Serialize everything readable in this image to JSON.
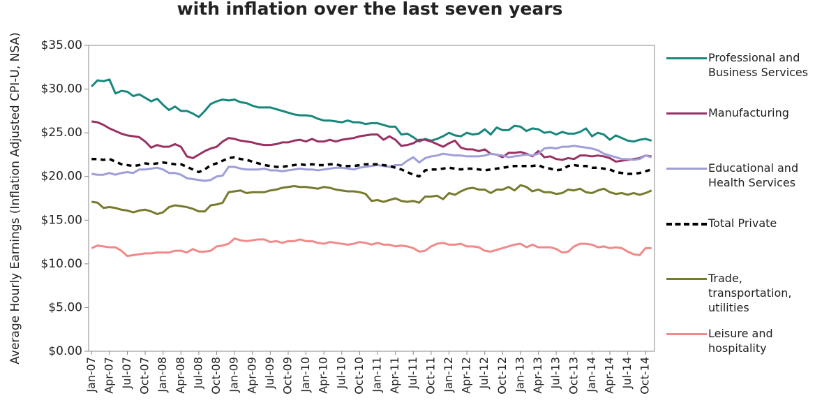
{
  "chart_data": {
    "type": "line",
    "title": "with inflation over the last seven years",
    "y_label": "Average Hourly Earnings (Inflation Adjusted CPI-U, NSA)",
    "categories": [
      "Jan-07",
      null,
      null,
      "Apr-07",
      null,
      null,
      "Jul-07",
      null,
      null,
      "Oct-07",
      null,
      null,
      "Jan-08",
      null,
      null,
      "Apr-08",
      null,
      null,
      "Jul-08",
      null,
      null,
      "Oct-08",
      null,
      null,
      "Jan-09",
      null,
      null,
      "Apr-09",
      null,
      null,
      "Jul-09",
      null,
      null,
      "Oct-09",
      null,
      null,
      "Jan-10",
      null,
      null,
      "Apr-10",
      null,
      null,
      "Jul-10",
      null,
      null,
      "Oct-10",
      null,
      null,
      "Jan-11",
      null,
      null,
      "Apr-11",
      null,
      null,
      "Jul-11",
      null,
      null,
      "Oct-11",
      null,
      null,
      "Jan-12",
      null,
      null,
      "Apr-12",
      null,
      null,
      "Jul-12",
      null,
      null,
      "Oct-12",
      null,
      null,
      "Jan-13",
      null,
      null,
      "Apr-13",
      null,
      null,
      "Jul-13",
      null,
      null,
      "Oct-13",
      null,
      null,
      "Jan-14",
      null,
      null,
      "Apr-14",
      null,
      null,
      "Jul-14",
      null,
      null,
      "Oct-14",
      null
    ],
    "ylim": [
      0,
      35
    ],
    "yticks": [
      {
        "value": 0,
        "label": "$0.00"
      },
      {
        "value": 5,
        "label": "$5.00"
      },
      {
        "value": 10,
        "label": "$10.00"
      },
      {
        "value": 15,
        "label": "$15.00"
      },
      {
        "value": 20,
        "label": "$20.00"
      },
      {
        "value": 25,
        "label": "$25.00"
      },
      {
        "value": 30,
        "label": "$30.00"
      },
      {
        "value": 35,
        "label": "$35.00"
      }
    ],
    "series": [
      {
        "name": "Professional and Business Services",
        "color": "#17877c",
        "dashed": false,
        "values": [
          30.3,
          31.0,
          30.9,
          31.1,
          29.5,
          29.8,
          29.7,
          29.2,
          29.4,
          29.0,
          28.6,
          28.9,
          28.2,
          27.6,
          28.0,
          27.5,
          27.5,
          27.2,
          26.8,
          27.5,
          28.3,
          28.6,
          28.8,
          28.7,
          28.8,
          28.5,
          28.4,
          28.1,
          27.9,
          27.9,
          27.9,
          27.7,
          27.5,
          27.3,
          27.1,
          27.0,
          27.0,
          26.9,
          26.6,
          26.4,
          26.4,
          26.3,
          26.2,
          26.4,
          26.2,
          26.2,
          26.0,
          26.1,
          26.1,
          25.9,
          25.7,
          25.7,
          24.8,
          24.9,
          24.5,
          24.0,
          24.3,
          24.1,
          24.3,
          24.6,
          25.0,
          24.7,
          24.6,
          25.0,
          24.8,
          24.9,
          25.4,
          24.8,
          25.6,
          25.3,
          25.3,
          25.8,
          25.7,
          25.2,
          25.5,
          25.4,
          25.0,
          25.1,
          24.8,
          25.1,
          24.9,
          24.9,
          25.1,
          25.5,
          24.6,
          25.0,
          24.8,
          24.2,
          24.7,
          24.4,
          24.1,
          24.0,
          24.2,
          24.3,
          24.1
        ]
      },
      {
        "name": "Manufacturing",
        "color": "#993163",
        "dashed": false,
        "values": [
          26.3,
          26.2,
          25.9,
          25.5,
          25.2,
          24.9,
          24.7,
          24.6,
          24.5,
          24.0,
          23.3,
          23.6,
          23.4,
          23.4,
          23.7,
          23.4,
          22.3,
          22.1,
          22.5,
          22.9,
          23.2,
          23.4,
          24.0,
          24.4,
          24.3,
          24.1,
          24.0,
          23.9,
          23.7,
          23.6,
          23.6,
          23.7,
          23.9,
          23.9,
          24.1,
          24.2,
          24.0,
          24.3,
          24.0,
          24.0,
          24.2,
          24.0,
          24.2,
          24.3,
          24.4,
          24.6,
          24.7,
          24.8,
          24.8,
          24.2,
          24.6,
          24.2,
          23.5,
          23.6,
          23.8,
          24.2,
          24.2,
          24.0,
          23.7,
          23.4,
          23.8,
          24.1,
          23.3,
          23.1,
          23.1,
          22.9,
          23.1,
          22.6,
          22.5,
          22.2,
          22.7,
          22.7,
          22.8,
          22.6,
          22.3,
          22.9,
          22.2,
          22.3,
          22.0,
          21.9,
          22.1,
          22.0,
          22.4,
          22.4,
          22.3,
          22.4,
          22.3,
          22.1,
          21.7,
          21.8,
          21.9,
          22.0,
          22.1,
          22.4,
          22.3
        ]
      },
      {
        "name": "Educational and Health Services",
        "color": "#9e9ed8",
        "dashed": false,
        "values": [
          20.3,
          20.2,
          20.2,
          20.4,
          20.2,
          20.4,
          20.5,
          20.4,
          20.8,
          20.8,
          20.9,
          21.0,
          20.8,
          20.4,
          20.4,
          20.2,
          19.8,
          19.7,
          19.6,
          19.5,
          19.6,
          20.0,
          20.1,
          21.1,
          21.1,
          20.9,
          20.8,
          20.8,
          20.8,
          20.9,
          20.7,
          20.7,
          20.6,
          20.7,
          20.8,
          20.9,
          20.8,
          20.8,
          20.7,
          20.8,
          20.9,
          21.0,
          21.0,
          20.9,
          20.8,
          21.0,
          21.1,
          21.2,
          21.3,
          21.2,
          21.1,
          21.3,
          21.3,
          21.8,
          22.2,
          21.6,
          22.1,
          22.3,
          22.4,
          22.6,
          22.5,
          22.4,
          22.4,
          22.3,
          22.3,
          22.3,
          22.4,
          22.6,
          22.5,
          22.4,
          22.2,
          22.3,
          22.4,
          22.5,
          22.4,
          22.6,
          23.2,
          23.3,
          23.2,
          23.4,
          23.4,
          23.5,
          23.4,
          23.3,
          23.2,
          23.0,
          22.6,
          22.4,
          22.2,
          22.0,
          22.0,
          21.9,
          22.0,
          22.4,
          22.2
        ]
      },
      {
        "name": "Total Private",
        "color": "#000000",
        "dashed": true,
        "values": [
          22.0,
          22.0,
          21.9,
          22.0,
          21.7,
          21.4,
          21.3,
          21.2,
          21.3,
          21.5,
          21.4,
          21.5,
          21.6,
          21.5,
          21.4,
          21.4,
          21.1,
          20.8,
          20.5,
          20.8,
          21.3,
          21.5,
          21.8,
          22.1,
          22.2,
          22.0,
          21.9,
          21.7,
          21.5,
          21.3,
          21.2,
          21.1,
          21.1,
          21.2,
          21.3,
          21.4,
          21.3,
          21.4,
          21.3,
          21.3,
          21.4,
          21.4,
          21.2,
          21.2,
          21.2,
          21.3,
          21.4,
          21.4,
          21.4,
          21.3,
          21.2,
          21.0,
          20.8,
          20.5,
          20.2,
          20.0,
          20.7,
          20.8,
          20.8,
          20.9,
          21.0,
          20.9,
          20.8,
          20.9,
          20.9,
          20.8,
          20.7,
          20.8,
          20.9,
          21.0,
          21.1,
          21.2,
          21.2,
          21.2,
          21.2,
          21.3,
          21.0,
          20.9,
          20.7,
          20.8,
          21.2,
          21.3,
          21.2,
          21.2,
          21.0,
          21.0,
          20.9,
          20.8,
          20.5,
          20.4,
          20.3,
          20.3,
          20.4,
          20.6,
          20.8
        ]
      },
      {
        "name": "Trade, transportation, utilities",
        "color": "#777a2c",
        "dashed": false,
        "values": [
          17.1,
          17.0,
          16.4,
          16.5,
          16.4,
          16.2,
          16.1,
          15.9,
          16.1,
          16.2,
          16.0,
          15.7,
          15.9,
          16.5,
          16.7,
          16.6,
          16.5,
          16.3,
          16.0,
          16.0,
          16.7,
          16.8,
          17.0,
          18.2,
          18.3,
          18.4,
          18.1,
          18.2,
          18.2,
          18.2,
          18.4,
          18.5,
          18.7,
          18.8,
          18.9,
          18.8,
          18.8,
          18.7,
          18.6,
          18.8,
          18.7,
          18.5,
          18.4,
          18.3,
          18.3,
          18.2,
          18.0,
          17.2,
          17.3,
          17.1,
          17.3,
          17.5,
          17.2,
          17.1,
          17.2,
          17.0,
          17.7,
          17.7,
          17.8,
          17.4,
          18.1,
          17.9,
          18.3,
          18.6,
          18.7,
          18.5,
          18.5,
          18.1,
          18.5,
          18.5,
          18.8,
          18.4,
          19.0,
          18.8,
          18.3,
          18.5,
          18.2,
          18.2,
          18.0,
          18.1,
          18.5,
          18.4,
          18.6,
          18.2,
          18.1,
          18.4,
          18.6,
          18.2,
          18.0,
          18.1,
          17.9,
          18.1,
          17.9,
          18.1,
          18.4
        ]
      },
      {
        "name": "Leisure and hospitality",
        "color": "#f08a88",
        "dashed": false,
        "values": [
          11.8,
          12.1,
          12.0,
          11.9,
          11.9,
          11.5,
          10.9,
          11.0,
          11.1,
          11.2,
          11.2,
          11.3,
          11.3,
          11.3,
          11.5,
          11.5,
          11.3,
          11.7,
          11.4,
          11.4,
          11.5,
          12.0,
          12.1,
          12.3,
          12.9,
          12.7,
          12.6,
          12.7,
          12.8,
          12.8,
          12.5,
          12.6,
          12.4,
          12.6,
          12.6,
          12.8,
          12.6,
          12.6,
          12.4,
          12.3,
          12.5,
          12.4,
          12.3,
          12.2,
          12.3,
          12.5,
          12.4,
          12.2,
          12.4,
          12.2,
          12.2,
          12.0,
          12.1,
          12.0,
          11.8,
          11.4,
          11.5,
          12.0,
          12.3,
          12.4,
          12.2,
          12.2,
          12.3,
          12.0,
          12.0,
          11.9,
          11.5,
          11.4,
          11.6,
          11.8,
          12.0,
          12.2,
          12.3,
          11.9,
          12.2,
          11.9,
          11.9,
          11.9,
          11.7,
          11.3,
          11.4,
          12.0,
          12.3,
          12.3,
          12.2,
          11.9,
          12.0,
          11.8,
          11.9,
          11.8,
          11.4,
          11.1,
          11.0,
          11.8,
          11.8
        ]
      }
    ],
    "grid": false,
    "legend": "right"
  }
}
